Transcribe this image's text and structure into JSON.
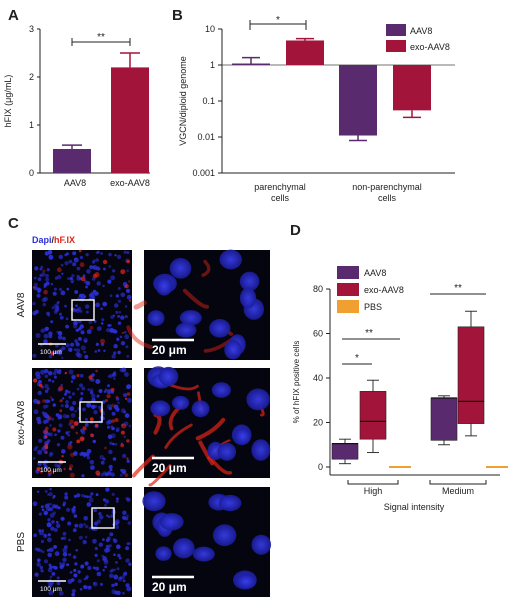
{
  "panels": {
    "A": "A",
    "B": "B",
    "C": "C",
    "D": "D"
  },
  "colors": {
    "aav8": "#5a2a6e",
    "exo": "#a3143a",
    "pbs": "#f0a030",
    "dapi": "#2b2fd6",
    "hfix": "#e02418",
    "tissue_bg": "#050510"
  },
  "chart_data": [
    {
      "panel": "A",
      "type": "bar",
      "ylabel": "hFIX (μg/mL)",
      "categories": [
        "AAV8",
        "exo-AAV8"
      ],
      "values": [
        0.5,
        2.2
      ],
      "errors": [
        0.08,
        0.3
      ],
      "ylim": [
        0,
        3
      ],
      "yticks": [
        "0",
        "1",
        "2",
        "3"
      ],
      "significance": [
        {
          "between": [
            "AAV8",
            "exo-AAV8"
          ],
          "label": "**"
        }
      ]
    },
    {
      "panel": "B",
      "type": "bar",
      "ylabel": "VGCN/diploid genome",
      "yscale": "log",
      "ylim": [
        0.001,
        10
      ],
      "yticks": [
        "0.001",
        "0.01",
        "0.1",
        "1",
        "10"
      ],
      "categories": [
        "parenchymal cells",
        "non-parenchymal cells"
      ],
      "series": [
        {
          "name": "AAV8",
          "values": [
            1.1,
            0.011
          ],
          "errors_upper": [
            1.6,
            0.011
          ],
          "errors_lower": [
            1.1,
            0.008
          ]
        },
        {
          "name": "exo-AAV8",
          "values": [
            4.8,
            0.055
          ],
          "errors_upper": [
            5.4,
            0.055
          ],
          "errors_lower": [
            4.8,
            0.035
          ]
        }
      ],
      "significance": [
        {
          "within": "parenchymal cells",
          "label": "*"
        }
      ]
    },
    {
      "panel": "D",
      "type": "box",
      "ylabel": "% of hFIX positive cells",
      "xlabel": "Signal intensity",
      "ylim": [
        0,
        80
      ],
      "yticks": [
        "0",
        "20",
        "40",
        "60",
        "80"
      ],
      "categories": [
        "High",
        "Medium"
      ],
      "series": [
        {
          "name": "AAV8",
          "boxes": [
            {
              "min": 1.5,
              "q1": 3.5,
              "median": 10.5,
              "q3": 10.5,
              "max": 12.5
            },
            {
              "min": 10,
              "q1": 12,
              "median": 31,
              "q3": 31,
              "max": 32
            }
          ]
        },
        {
          "name": "exo-AAV8",
          "boxes": [
            {
              "min": 6.5,
              "q1": 12.5,
              "median": 20.5,
              "q3": 34,
              "max": 39
            },
            {
              "min": 14,
              "q1": 19.5,
              "median": 29.5,
              "q3": 63,
              "max": 70
            }
          ]
        },
        {
          "name": "PBS",
          "boxes": [
            {
              "min": 0,
              "q1": 0,
              "median": 0,
              "q3": 0,
              "max": 0
            },
            {
              "min": 0,
              "q1": 0,
              "median": 0,
              "q3": 0,
              "max": 0
            }
          ]
        }
      ],
      "significance": [
        {
          "group": "High",
          "label": "*",
          "between": [
            "AAV8",
            "exo-AAV8"
          ]
        },
        {
          "group": "High",
          "label": "**",
          "between": [
            "AAV8",
            "PBS"
          ]
        },
        {
          "group": "Medium",
          "label": "**",
          "between": [
            "AAV8",
            "PBS"
          ]
        }
      ]
    }
  ],
  "micrographs": {
    "stain_dapi": "Dapi",
    "stain_slash": "/",
    "stain_hfix": "hF.IX",
    "rows": [
      {
        "label": "AAV8",
        "overview_scale": "100 μm",
        "zoom_scale": "20 μm",
        "signal": 0.35
      },
      {
        "label": "exo-AAV8",
        "overview_scale": "100 μm",
        "zoom_scale": "20 μm",
        "signal": 1.0
      },
      {
        "label": "PBS",
        "overview_scale": "100 μm",
        "zoom_scale": "20 μm",
        "signal": 0.0
      }
    ]
  }
}
